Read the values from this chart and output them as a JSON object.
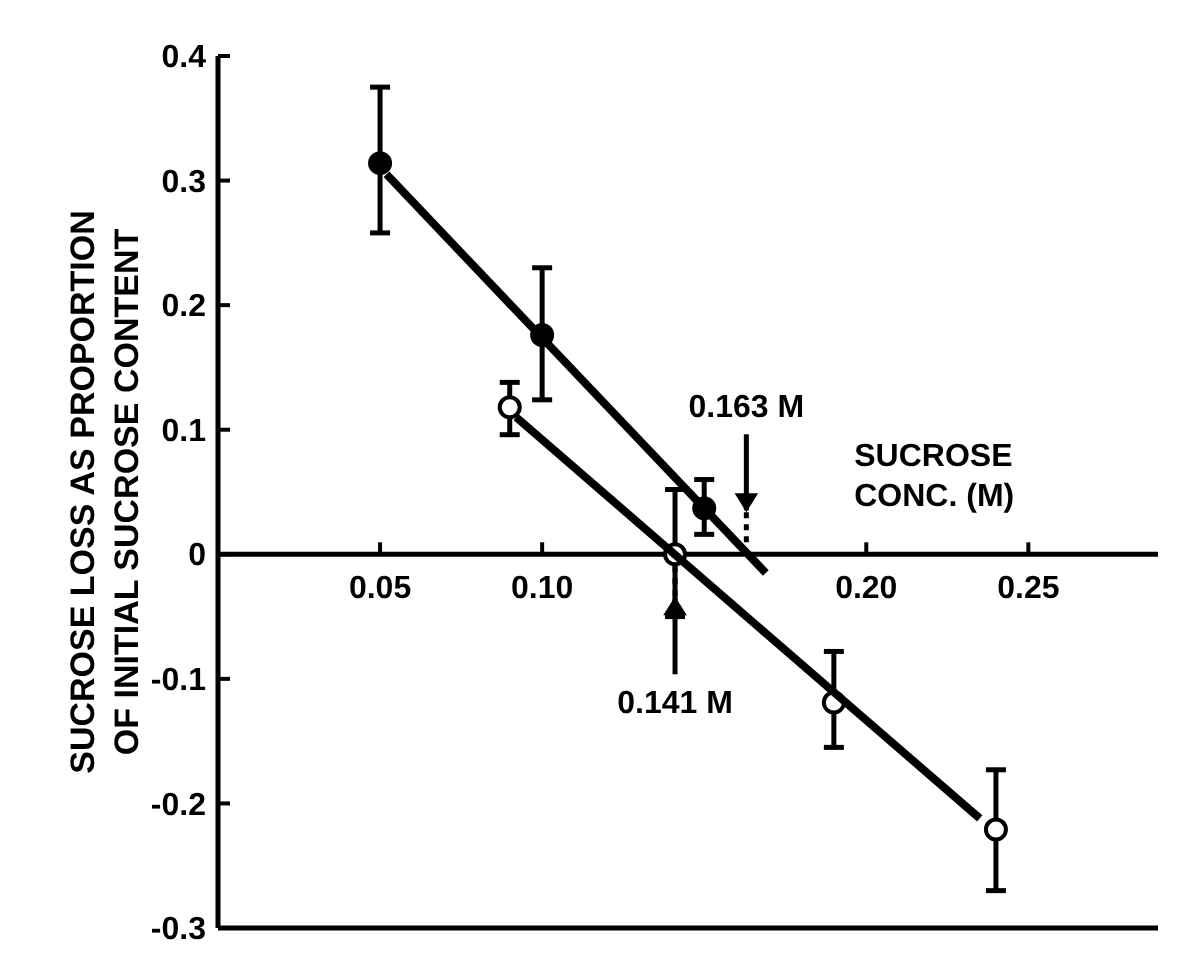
{
  "chart_data": {
    "type": "scatter",
    "xlabel": "SUCROSE\nCONC. (M)",
    "ylabel": "SUCROSE LOSS AS PROPORTION\nOF INITIAL SUCROSE CONTENT",
    "xlim": [
      0,
      0.29
    ],
    "ylim": [
      -0.3,
      0.4
    ],
    "xticks": [
      0.05,
      {
        "value": 0.1,
        "label": "0.10"
      },
      {
        "value": 0.2,
        "label": "0.20"
      },
      0.25
    ],
    "yticks": [
      -0.3,
      -0.2,
      -0.1,
      0,
      0.1,
      0.2,
      0.3,
      0.4
    ],
    "grid": false,
    "series": [
      {
        "color": "#000000",
        "marker": "circle",
        "x": [
          0.05,
          0.1,
          0.15
        ],
        "values": [
          0.314,
          0.176,
          0.037
        ],
        "errors": [
          [
            0.258,
            0.375
          ],
          [
            0.124,
            0.23
          ],
          [
            0.016,
            0.06
          ]
        ]
      },
      {
        "color": "#000000",
        "marker": "open-circle",
        "x": [
          0.09,
          0.141,
          0.19,
          0.24
        ],
        "values": [
          0.118,
          0,
          -0.119,
          -0.221
        ],
        "errors": [
          [
            0.096,
            0.138
          ],
          [
            -0.05,
            0.052
          ],
          [
            -0.155,
            -0.078
          ],
          [
            -0.27,
            -0.173
          ]
        ]
      },
      {
        "type": "line",
        "color": "#000000",
        "x": [
          0.052,
          0.169
        ],
        "values": [
          0.305,
          -0.015
        ]
      },
      {
        "type": "line",
        "color": "#000000",
        "x": [
          0.092,
          0.235
        ],
        "values": [
          0.11,
          -0.212
        ]
      }
    ],
    "ref_lines": [
      {
        "axis": "x",
        "value": 0.163,
        "label": "0.163 M"
      },
      {
        "axis": "x",
        "value": 0.141,
        "label": "0.141 M"
      }
    ]
  }
}
